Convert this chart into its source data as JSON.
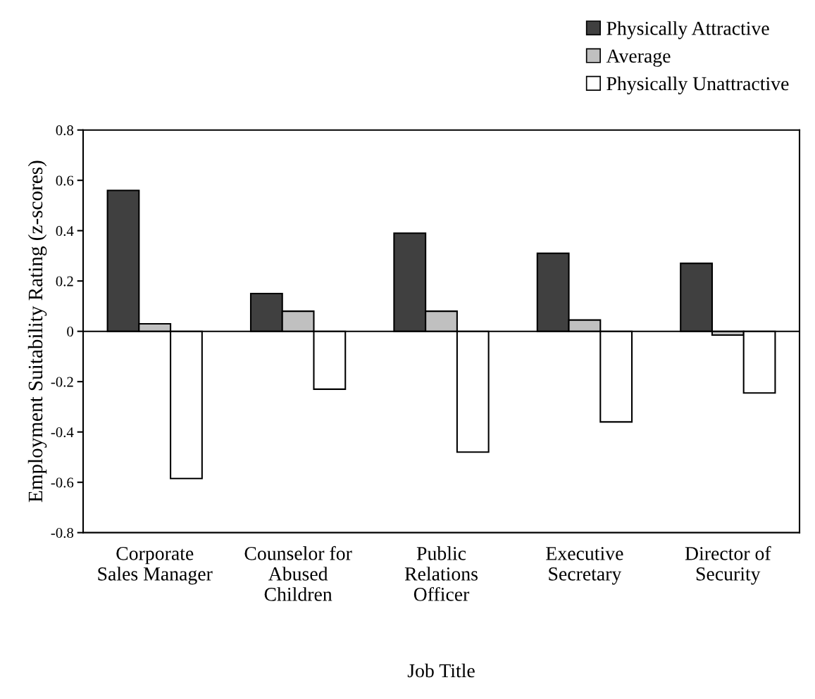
{
  "chart_data": {
    "type": "bar",
    "xlabel": "Job Title",
    "ylabel": "Employment Suitability Rating (z-scores)",
    "categories": [
      "Corporate\nSales Manager",
      "Counselor for\nAbused\nChildren",
      "Public\nRelations\nOfficer",
      "Executive\nSecretary",
      "Director of\nSecurity"
    ],
    "series": [
      {
        "name": "Physically Attractive",
        "color": "#404040",
        "values": [
          0.56,
          0.15,
          0.39,
          0.31,
          0.27
        ]
      },
      {
        "name": "Average",
        "color": "#c0c0c0",
        "values": [
          0.03,
          0.08,
          0.08,
          0.045,
          -0.015
        ]
      },
      {
        "name": "Physically Unattractive",
        "color": "#ffffff",
        "values": [
          -0.585,
          -0.23,
          -0.48,
          -0.36,
          -0.245
        ]
      }
    ],
    "ylim": [
      -0.8,
      0.8
    ],
    "yticks": [
      {
        "value": -0.8,
        "label": "-0.8"
      },
      {
        "value": -0.6,
        "label": "-0.6"
      },
      {
        "value": -0.4,
        "label": "-0.4"
      },
      {
        "value": -0.2,
        "label": "-0.2"
      },
      0,
      0.2,
      0.4,
      0.6,
      0.8
    ],
    "legend": "top right"
  }
}
